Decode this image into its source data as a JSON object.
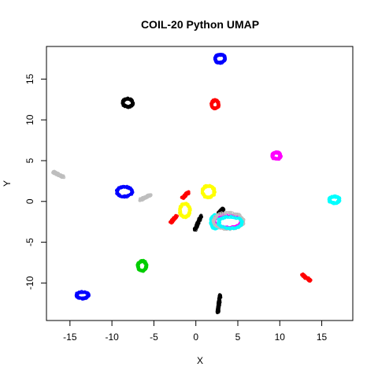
{
  "chart_data": {
    "type": "scatter",
    "title": "COIL-20 Python UMAP",
    "xlabel": "X",
    "ylabel": "Y",
    "xlim": [
      -17.8,
      18.7
    ],
    "ylim": [
      -14.6,
      19.0
    ],
    "grid": false,
    "x_ticks": [
      -15,
      -10,
      -5,
      0,
      5,
      10,
      15
    ],
    "y_ticks": [
      -10,
      -5,
      0,
      5,
      10,
      15
    ],
    "x_tick_labels": [
      "-15",
      "-10",
      "-5",
      "0",
      "5",
      "10",
      "15"
    ],
    "y_tick_labels": [
      "-10",
      "-5",
      "0",
      "5",
      "10",
      "15"
    ],
    "clusters": [
      {
        "color": "#0000FF",
        "shape": "loop",
        "cx": 2.9,
        "cy": 17.5,
        "rx": 0.6,
        "ry": 0.5
      },
      {
        "color": "#000000",
        "shape": "loop",
        "cx": -8.1,
        "cy": 12.1,
        "rx": 0.6,
        "ry": 0.5
      },
      {
        "color": "#FF0000",
        "shape": "loop",
        "cx": 2.3,
        "cy": 11.9,
        "rx": 0.4,
        "ry": 0.5
      },
      {
        "color": "#FF00FF",
        "shape": "loop",
        "cx": 9.6,
        "cy": 5.6,
        "rx": 0.5,
        "ry": 0.4
      },
      {
        "color": "#BEBEBE",
        "shape": "strip",
        "x1": -17.0,
        "y1": 3.6,
        "x2": -15.8,
        "y2": 3.0
      },
      {
        "color": "#0000FF",
        "shape": "loop",
        "cx": -8.5,
        "cy": 1.2,
        "rx": 0.9,
        "ry": 0.6
      },
      {
        "color": "#BEBEBE",
        "shape": "strip",
        "x1": -6.6,
        "y1": 0.2,
        "x2": -5.4,
        "y2": 0.8
      },
      {
        "color": "#FF0000",
        "shape": "strip",
        "x1": -1.6,
        "y1": 0.4,
        "x2": -0.9,
        "y2": 1.1
      },
      {
        "color": "#FFFF00",
        "shape": "loop",
        "cx": 1.5,
        "cy": 1.2,
        "rx": 0.7,
        "ry": 0.7
      },
      {
        "color": "#00FFFF",
        "shape": "loop",
        "cx": 16.5,
        "cy": 0.2,
        "rx": 0.6,
        "ry": 0.4
      },
      {
        "color": "#FFFF00",
        "shape": "loop",
        "cx": -1.3,
        "cy": -1.1,
        "rx": 0.6,
        "ry": 0.8
      },
      {
        "color": "#FF0000",
        "shape": "strip",
        "x1": -3.0,
        "y1": -2.6,
        "x2": -2.3,
        "y2": -1.8
      },
      {
        "color": "#000000",
        "shape": "strip",
        "x1": -0.1,
        "y1": -3.5,
        "x2": 0.6,
        "y2": -1.8
      },
      {
        "color": "#00FFFF",
        "shape": "loop",
        "cx": 2.3,
        "cy": -2.5,
        "rx": 0.5,
        "ry": 0.8
      },
      {
        "color": "#000000",
        "shape": "strip",
        "x1": 2.7,
        "y1": -1.4,
        "x2": 3.3,
        "y2": -0.9
      },
      {
        "color": "#FF00FF",
        "shape": "loop",
        "cx": 3.8,
        "cy": -2.4,
        "rx": 1.6,
        "ry": 0.8
      },
      {
        "color": "#BEBEBE",
        "shape": "loop",
        "cx": 3.9,
        "cy": -2.4,
        "rx": 1.8,
        "ry": 1.0
      },
      {
        "color": "#00FFFF",
        "shape": "loop",
        "cx": 4.1,
        "cy": -2.6,
        "rx": 1.4,
        "ry": 0.7
      },
      {
        "color": "#00CD00",
        "shape": "loop",
        "cx": -6.4,
        "cy": -7.9,
        "rx": 0.5,
        "ry": 0.6
      },
      {
        "color": "#FF0000",
        "shape": "strip",
        "x1": 12.7,
        "y1": -9.0,
        "x2": 13.6,
        "y2": -9.7
      },
      {
        "color": "#0000FF",
        "shape": "loop",
        "cx": -13.5,
        "cy": -11.5,
        "rx": 0.7,
        "ry": 0.4
      },
      {
        "color": "#000000",
        "shape": "strip",
        "x1": 2.9,
        "y1": -11.5,
        "x2": 2.6,
        "y2": -13.6
      }
    ]
  }
}
